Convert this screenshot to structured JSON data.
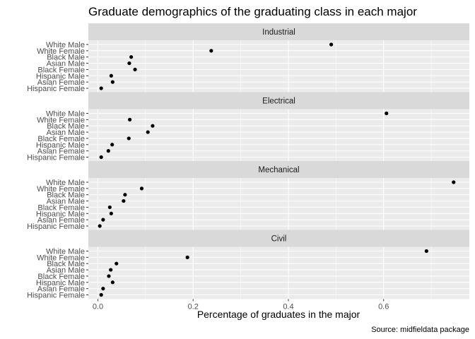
{
  "chart_data": {
    "type": "scatter",
    "title": "Graduate demographics of the graduating class in each major",
    "xlabel": "Percentage of graduates in the major",
    "ylabel": "",
    "caption": "Source: midfieldata package",
    "xlim": [
      -0.02,
      0.78
    ],
    "xticks": [
      0.0,
      0.2,
      0.4,
      0.6
    ],
    "xtick_labels": [
      "0.0",
      "0.2",
      "0.4",
      "0.6"
    ],
    "categories": [
      "White Male",
      "White Female",
      "Black Male",
      "Asian Male",
      "Black Female",
      "Hispanic Male",
      "Asian Female",
      "Hispanic Female"
    ],
    "grid": true,
    "colors": {
      "panel_bg": "#ebebeb",
      "strip_bg": "#d9d9d9",
      "grid": "#ffffff",
      "point": "#000000"
    },
    "panels": [
      {
        "name": "Industrial",
        "values": [
          0.49,
          0.238,
          0.07,
          0.066,
          0.078,
          0.028,
          0.031,
          0.007
        ]
      },
      {
        "name": "Electrical",
        "values": [
          0.606,
          0.067,
          0.115,
          0.105,
          0.065,
          0.03,
          0.022,
          0.007
        ]
      },
      {
        "name": "Mechanical",
        "values": [
          0.747,
          0.092,
          0.057,
          0.054,
          0.025,
          0.028,
          0.011,
          0.004
        ]
      },
      {
        "name": "Civil",
        "values": [
          0.69,
          0.188,
          0.039,
          0.027,
          0.023,
          0.031,
          0.011,
          0.007
        ]
      }
    ]
  }
}
